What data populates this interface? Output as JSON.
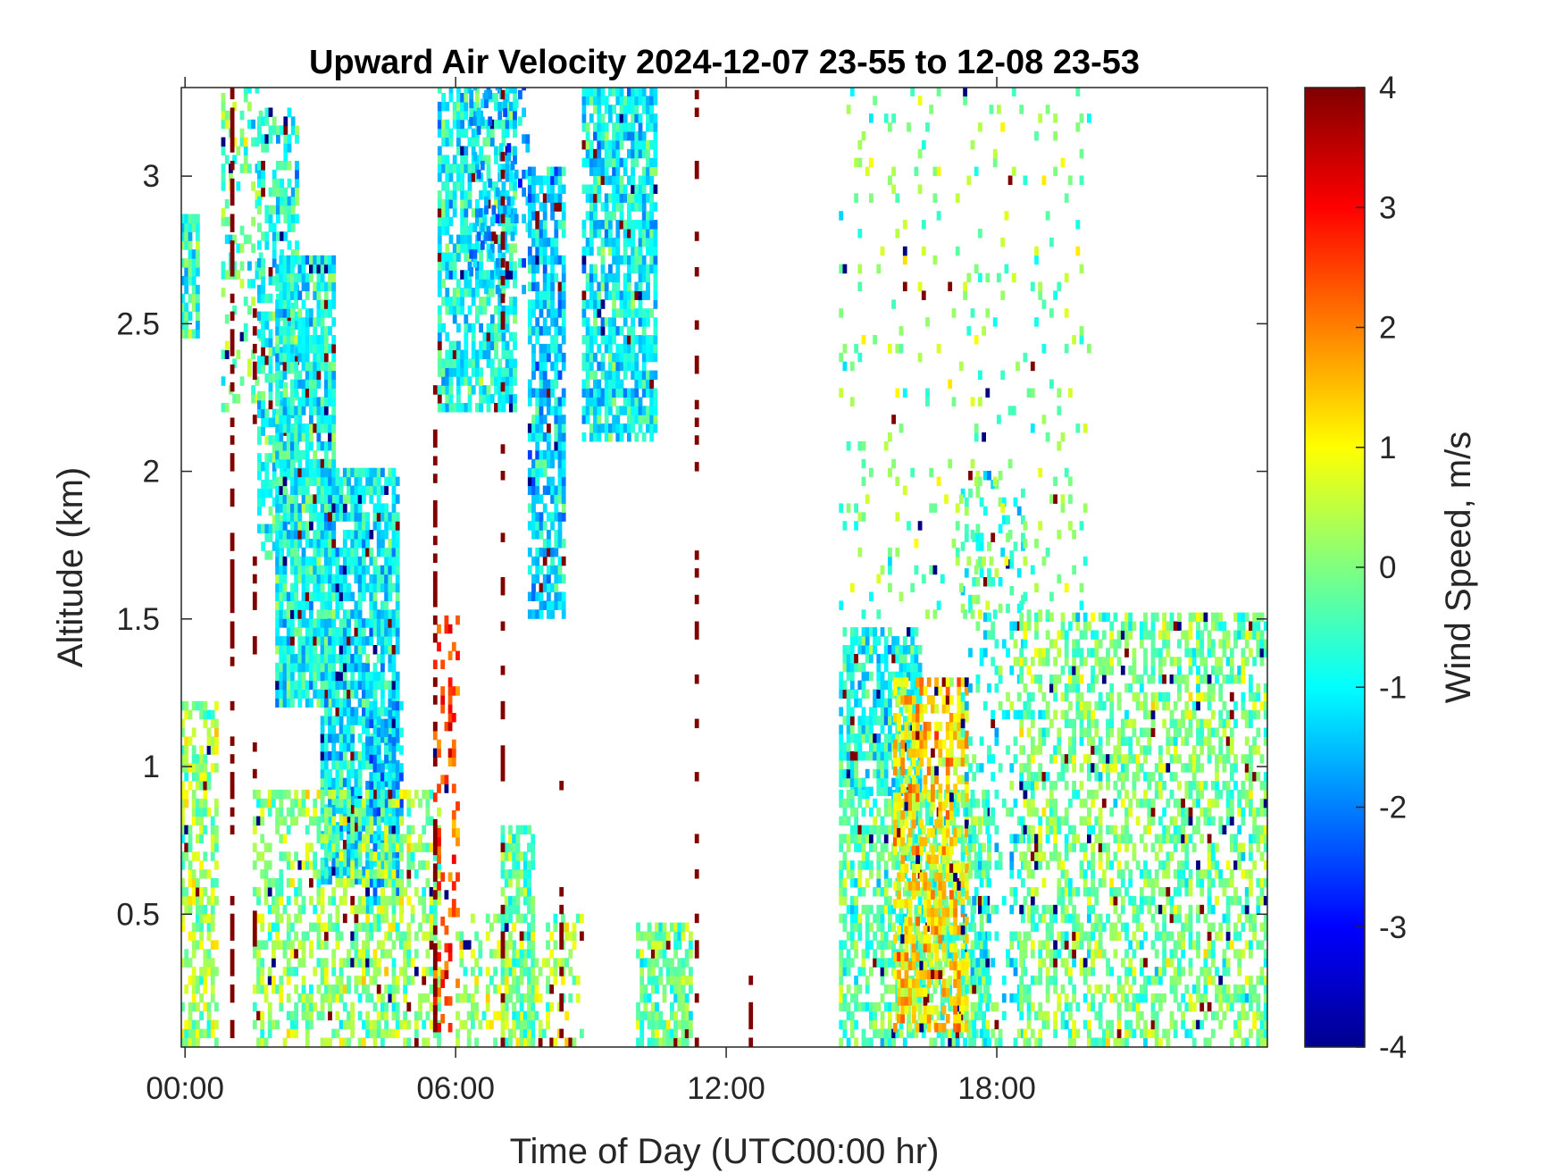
{
  "chart_data": {
    "type": "heatmap",
    "title": "Upward Air Velocity 2024-12-07 23-55 to 12-08 23-53",
    "xlabel": "Time of Day (UTC00:00 hr)",
    "ylabel": "Altitude (km)",
    "colorbar_label": "Wind Speed, m/s",
    "colormap": "jet",
    "x_range_hours": [
      -0.083,
      24.0
    ],
    "y_range_km": [
      0.05,
      3.3
    ],
    "color_range": [
      -4,
      4
    ],
    "x_ticks": [
      {
        "value": 0,
        "label": "00:00"
      },
      {
        "value": 6,
        "label": "06:00"
      },
      {
        "value": 12,
        "label": "12:00"
      },
      {
        "value": 18,
        "label": "18:00"
      }
    ],
    "y_ticks": [
      {
        "value": 0.5,
        "label": "0.5"
      },
      {
        "value": 1,
        "label": "1"
      },
      {
        "value": 1.5,
        "label": "1.5"
      },
      {
        "value": 2,
        "label": "2"
      },
      {
        "value": 2.5,
        "label": "2.5"
      },
      {
        "value": 3,
        "label": "3"
      }
    ],
    "colorbar_ticks": [
      {
        "value": 4,
        "label": "4"
      },
      {
        "value": 3,
        "label": "3"
      },
      {
        "value": 2,
        "label": "2"
      },
      {
        "value": 1,
        "label": "1"
      },
      {
        "value": 0,
        "label": "0"
      },
      {
        "value": -1,
        "label": "-1"
      },
      {
        "value": -2,
        "label": "-2"
      },
      {
        "value": -3,
        "label": "-3"
      },
      {
        "value": -4,
        "label": "-4"
      }
    ],
    "regions": [
      {
        "x": [
          -0.1,
          0.3
        ],
        "y": [
          2.45,
          2.85
        ],
        "mean": -0.6,
        "density": 0.8
      },
      {
        "x": [
          -0.1,
          0.7
        ],
        "y": [
          0.05,
          1.2
        ],
        "mean": 0.2,
        "density": 0.55
      },
      {
        "x": [
          0.8,
          1.7
        ],
        "y": [
          2.2,
          3.3
        ],
        "mean": -0.3,
        "density": 0.25
      },
      {
        "x": [
          1.6,
          2.5
        ],
        "y": [
          1.7,
          3.2
        ],
        "mean": -0.8,
        "density": 0.55
      },
      {
        "x": [
          2.0,
          3.3
        ],
        "y": [
          1.2,
          2.7
        ],
        "mean": -0.9,
        "density": 0.85
      },
      {
        "x": [
          3.0,
          4.7
        ],
        "y": [
          0.6,
          2.0
        ],
        "mean": -1.1,
        "density": 0.8
      },
      {
        "x": [
          4.0,
          4.8
        ],
        "y": [
          0.5,
          1.2
        ],
        "mean": -1.6,
        "density": 0.6
      },
      {
        "x": [
          1.5,
          5.6
        ],
        "y": [
          0.05,
          0.9
        ],
        "mean": 0.1,
        "density": 0.5
      },
      {
        "x": [
          5.5,
          6.0
        ],
        "y": [
          0.1,
          1.5
        ],
        "mean": 2.5,
        "density": 0.25
      },
      {
        "x": [
          5.6,
          7.3
        ],
        "y": [
          2.2,
          3.3
        ],
        "mean": -0.9,
        "density": 0.7
      },
      {
        "x": [
          6.3,
          7.6
        ],
        "y": [
          2.6,
          3.3
        ],
        "mean": -1.7,
        "density": 0.25
      },
      {
        "x": [
          7.6,
          8.4
        ],
        "y": [
          1.5,
          3.0
        ],
        "mean": -1.3,
        "density": 0.7
      },
      {
        "x": [
          7.0,
          7.7
        ],
        "y": [
          0.05,
          0.8
        ],
        "mean": -0.3,
        "density": 0.7
      },
      {
        "x": [
          6.0,
          8.8
        ],
        "y": [
          0.05,
          0.5
        ],
        "mean": 0.3,
        "density": 0.35
      },
      {
        "x": [
          8.8,
          10.4
        ],
        "y": [
          2.1,
          3.3
        ],
        "mean": -1.0,
        "density": 0.75
      },
      {
        "x": [
          10.0,
          11.2
        ],
        "y": [
          0.05,
          0.45
        ],
        "mean": -0.1,
        "density": 0.7
      },
      {
        "x": [
          14.5,
          16.3
        ],
        "y": [
          0.9,
          1.45
        ],
        "mean": -0.8,
        "density": 0.7
      },
      {
        "x": [
          14.5,
          17.8
        ],
        "y": [
          0.05,
          0.9
        ],
        "mean": -0.3,
        "density": 0.6
      },
      {
        "x": [
          15.7,
          17.3
        ],
        "y": [
          0.1,
          1.3
        ],
        "mean": 1.3,
        "density": 0.6
      },
      {
        "x": [
          17.2,
          18.6
        ],
        "y": [
          0.05,
          2.0
        ],
        "mean": -0.7,
        "density": 0.25
      },
      {
        "x": [
          18.5,
          24.0
        ],
        "y": [
          0.05,
          1.5
        ],
        "mean": -0.1,
        "density": 0.5
      },
      {
        "x": [
          14.5,
          20.0
        ],
        "y": [
          1.5,
          3.3
        ],
        "mean": 0.0,
        "density": 0.08
      }
    ],
    "streaks": [
      {
        "x": 1.0,
        "y": [
          0.05,
          3.3
        ],
        "mean": 4,
        "density": 0.45
      },
      {
        "x": 1.5,
        "y": [
          0.3,
          2.6
        ],
        "mean": 4,
        "density": 0.3
      },
      {
        "x": 5.5,
        "y": [
          0.1,
          2.4
        ],
        "mean": 4,
        "density": 0.4
      },
      {
        "x": 7.0,
        "y": [
          0.05,
          3.3
        ],
        "mean": 4,
        "density": 0.35
      },
      {
        "x": 8.3,
        "y": [
          0.05,
          1.0
        ],
        "mean": 4,
        "density": 0.35
      },
      {
        "x": 11.3,
        "y": [
          0.05,
          3.3
        ],
        "mean": 4,
        "density": 0.25
      },
      {
        "x": 12.5,
        "y": [
          0.05,
          0.3
        ],
        "mean": 4,
        "density": 0.6
      }
    ]
  }
}
